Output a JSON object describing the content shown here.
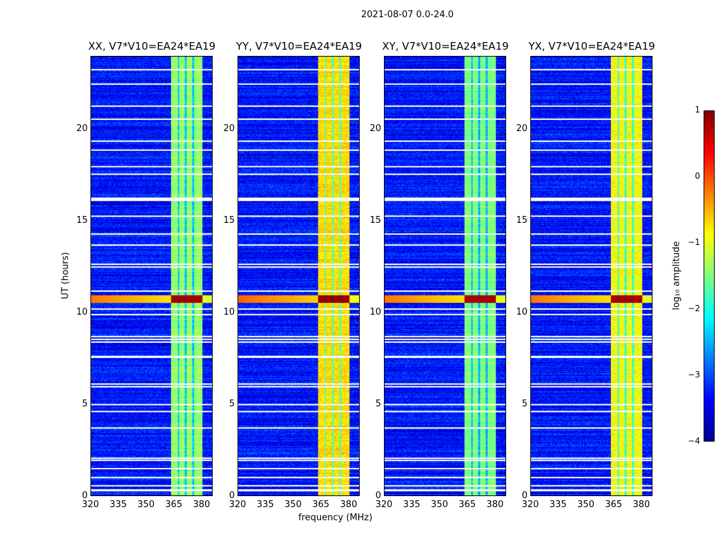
{
  "chart_data": {
    "type": "heatmap",
    "title": "2021-08-07 0.0-24.0",
    "xlabel": "frequency (MHz)",
    "ylabel": "UT (hours)",
    "xlim": [
      320,
      386
    ],
    "ylim": [
      0,
      24
    ],
    "xticks": [
      "320",
      "335",
      "350",
      "365",
      "380"
    ],
    "yticks": [
      "0",
      "5",
      "10",
      "15",
      "20"
    ],
    "panels": [
      {
        "title": "XX, V7*V10=EA24*EA19",
        "band_level": -1.4,
        "event_level": 0.8
      },
      {
        "title": "YY, V7*V10=EA24*EA19",
        "band_level": -0.7,
        "event_level": 0.9
      },
      {
        "title": "XY, V7*V10=EA24*EA19",
        "band_level": -1.5,
        "event_level": 0.8
      },
      {
        "title": "YX, V7*V10=EA24*EA19",
        "band_level": -0.9,
        "event_level": 0.8
      }
    ],
    "background_level": -3.3,
    "band_mhz": [
      363.5,
      380.5
    ],
    "band_gap_mhz": [
      367.5,
      371.5,
      375.5
    ],
    "event_hours": [
      10.55,
      10.95
    ],
    "flagged_hours": [
      0.3,
      0.55,
      1.0,
      1.5,
      1.95,
      2.05,
      3.7,
      4.6,
      5.0,
      5.95,
      6.1,
      7.6,
      8.4,
      8.55,
      8.7,
      9.9,
      10.2,
      11.2,
      12.5,
      12.65,
      13.7,
      14.3,
      15.3,
      16.15,
      16.25,
      17.6,
      18.0,
      18.9,
      19.4,
      20.6,
      21.3,
      22.5,
      23.3
    ],
    "colorbar": {
      "label": "log₁₀ amplitude",
      "ticks": [
        "−4",
        "−3",
        "−2",
        "−1",
        "0",
        "1"
      ],
      "range": [
        -4,
        1
      ],
      "colormap": "jet"
    }
  }
}
